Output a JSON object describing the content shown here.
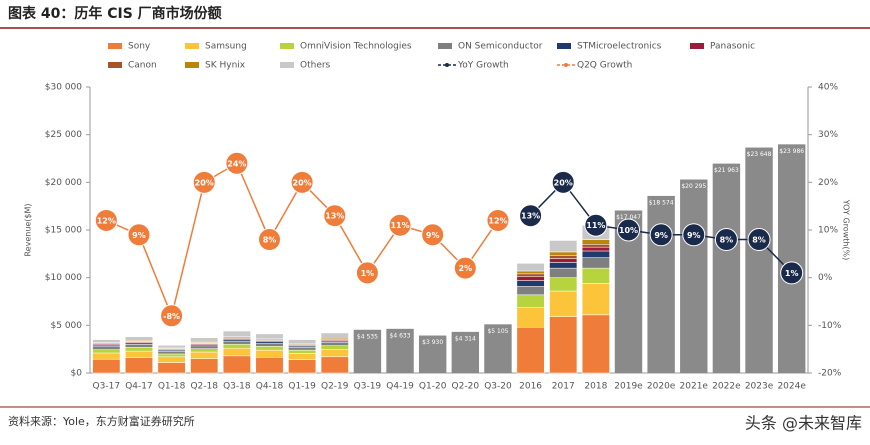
{
  "title": "图表 40：历年 CIS 厂商市场份额",
  "source": "资料来源：Yole，东方财富证券研究所",
  "watermark": "头条 @未来智库",
  "chart_data": {
    "type": "bar",
    "stacked": true,
    "categories": [
      "Q3-17",
      "Q4-17",
      "Q1-18",
      "Q2-18",
      "Q3-18",
      "Q4-18",
      "Q1-19",
      "Q2-19",
      "Q3-19",
      "Q4-19",
      "Q1-20",
      "Q2-20",
      "Q3-20",
      "2016",
      "2017",
      "2018",
      "2019e",
      "2020e",
      "2021e",
      "2022e",
      "2023e",
      "2024e"
    ],
    "ylabel": "Revenue($M)",
    "y2label": "YOY Growth(%)",
    "ylim": [
      0,
      30000
    ],
    "yticks": [
      {
        "value": 0,
        "label": "$0"
      },
      {
        "value": 5000,
        "label": "$5 000"
      },
      {
        "value": 10000,
        "label": "$10 000"
      },
      {
        "value": 15000,
        "label": "$15 000"
      },
      {
        "value": 20000,
        "label": "$20 000"
      },
      {
        "value": 25000,
        "label": "$25 000"
      },
      {
        "value": 30000,
        "label": "$30 000"
      }
    ],
    "y2lim": [
      -20,
      40
    ],
    "y2ticks": [
      {
        "value": -20,
        "label": "-20%"
      },
      {
        "value": -10,
        "label": "-10%"
      },
      {
        "value": 0,
        "label": "0%"
      },
      {
        "value": 10,
        "label": "10%"
      },
      {
        "value": 20,
        "label": "20%"
      },
      {
        "value": 30,
        "label": "30%"
      },
      {
        "value": 40,
        "label": "40%"
      }
    ],
    "series": [
      {
        "name": "Sony",
        "color": "#f07c3a",
        "values": [
          1450,
          1600,
          1100,
          1500,
          1800,
          1650,
          1400,
          1700,
          null,
          null,
          null,
          null,
          null,
          4800,
          5900,
          6100,
          null,
          null,
          null,
          null,
          null,
          null
        ]
      },
      {
        "name": "Samsung",
        "color": "#fcc43b",
        "values": [
          650,
          700,
          600,
          700,
          800,
          750,
          650,
          750,
          null,
          null,
          null,
          null,
          null,
          2100,
          2700,
          3300,
          null,
          null,
          null,
          null,
          null,
          null
        ]
      },
      {
        "name": "OmniVision Technologies",
        "color": "#b7d33d",
        "values": [
          350,
          380,
          300,
          350,
          420,
          400,
          350,
          420,
          null,
          null,
          null,
          null,
          null,
          1300,
          1400,
          1600,
          null,
          null,
          null,
          null,
          null,
          null
        ]
      },
      {
        "name": "ON Semiconductor",
        "color": "#7f7f7f",
        "values": [
          320,
          330,
          280,
          300,
          330,
          330,
          300,
          330,
          null,
          null,
          null,
          null,
          null,
          900,
          1000,
          1100,
          null,
          null,
          null,
          null,
          null,
          null
        ]
      },
      {
        "name": "STMicroelectronics",
        "color": "#1f3b6e",
        "values": [
          150,
          150,
          120,
          130,
          150,
          150,
          130,
          150,
          null,
          null,
          null,
          null,
          null,
          600,
          600,
          700,
          null,
          null,
          null,
          null,
          null,
          null
        ]
      },
      {
        "name": "Panasonic",
        "color": "#9b1b3b",
        "values": [
          100,
          100,
          80,
          90,
          100,
          100,
          90,
          100,
          null,
          null,
          null,
          null,
          null,
          400,
          400,
          400,
          null,
          null,
          null,
          null,
          null,
          null
        ]
      },
      {
        "name": "Canon",
        "color": "#a6532a",
        "values": [
          80,
          80,
          70,
          80,
          90,
          90,
          80,
          90,
          null,
          null,
          null,
          null,
          null,
          300,
          300,
          300,
          null,
          null,
          null,
          null,
          null,
          null
        ]
      },
      {
        "name": "SK Hynix",
        "color": "#b8860b",
        "values": [
          80,
          90,
          80,
          90,
          110,
          110,
          100,
          110,
          null,
          null,
          null,
          null,
          null,
          300,
          400,
          500,
          null,
          null,
          null,
          null,
          null,
          null
        ]
      },
      {
        "name": "Others",
        "color": "#c8c8c8",
        "values": [
          320,
          370,
          270,
          460,
          600,
          520,
          400,
          550,
          null,
          null,
          null,
          null,
          null,
          800,
          1200,
          1500,
          null,
          null,
          null,
          null,
          null,
          null
        ]
      },
      {
        "name": "YoY Growth",
        "type": "line",
        "axis": "y2",
        "color": "#1a2a4a",
        "values": [
          null,
          null,
          null,
          null,
          null,
          null,
          null,
          null,
          null,
          null,
          null,
          null,
          null,
          13,
          20,
          11,
          10,
          9,
          9,
          8,
          8,
          1
        ],
        "value_labels": [
          null,
          null,
          null,
          null,
          null,
          null,
          null,
          null,
          null,
          null,
          null,
          null,
          null,
          "13%",
          "20%",
          "11%",
          "10%",
          "9%",
          "9%",
          "8%",
          "8%",
          "1%"
        ]
      },
      {
        "name": "Q2Q Growth",
        "type": "line",
        "axis": "y2",
        "color": "#f07c3a",
        "values": [
          12,
          9,
          -8,
          20,
          24,
          8,
          20,
          13,
          1,
          11,
          9,
          2,
          12,
          null,
          null,
          null,
          null,
          null,
          null,
          null,
          null,
          null
        ],
        "value_labels": [
          "12%",
          "9%",
          "-8%",
          "20%",
          "24%",
          "8%",
          "20%",
          "13%",
          "1%",
          "11%",
          "9%",
          "2%",
          "12%",
          null,
          null,
          null,
          null,
          null,
          null,
          null,
          null,
          null
        ]
      }
    ],
    "totals": {
      "color": "#8a8a8a",
      "values": [
        null,
        null,
        null,
        null,
        null,
        null,
        null,
        null,
        4535,
        4633,
        3930,
        4314,
        5105,
        null,
        null,
        null,
        17047,
        18574,
        20295,
        21963,
        23648,
        23986
      ],
      "value_labels": [
        null,
        null,
        null,
        null,
        null,
        null,
        null,
        null,
        "$4 535",
        "$4 633",
        "$3 930",
        "$4 314",
        "$5 105",
        null,
        null,
        null,
        "$17 047",
        "$18 574",
        "$20 295",
        "$21 963",
        "$23 648",
        "$23 986"
      ]
    }
  }
}
